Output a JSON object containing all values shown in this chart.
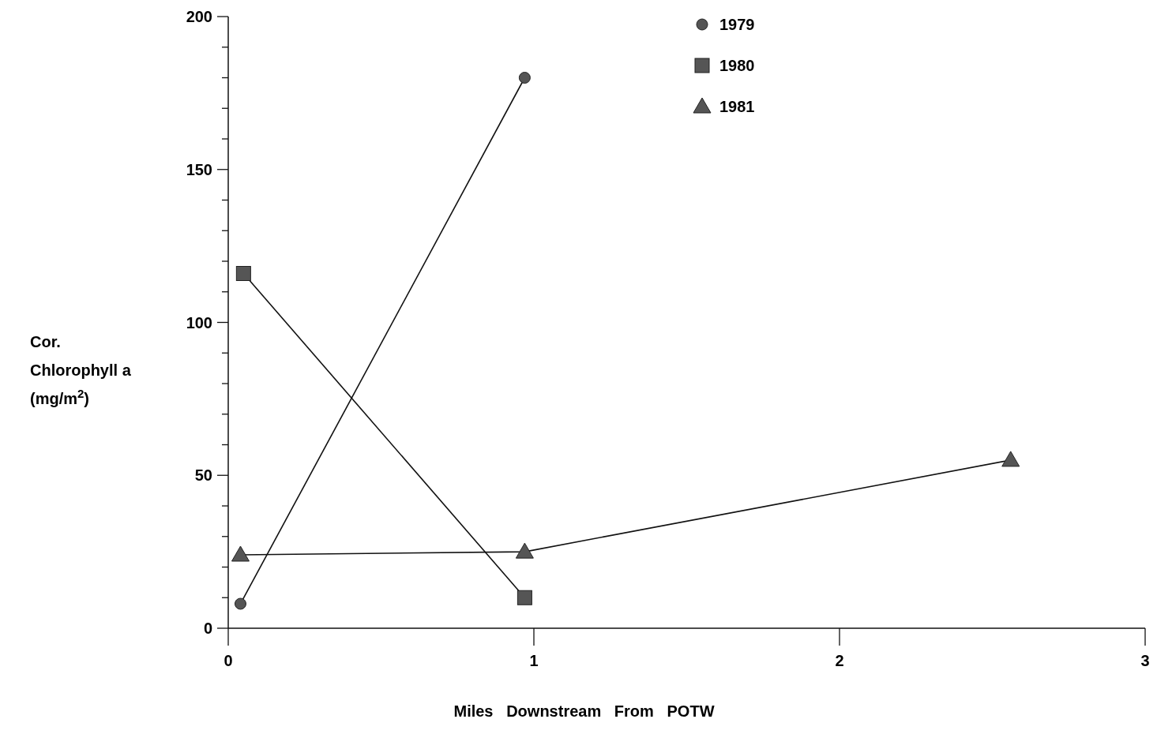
{
  "chart_data": {
    "type": "line",
    "xlabel": "Miles   Downstream   From   POTW",
    "ylabel": "Cor.\nChlorophyll a\n(mg/m$^{2}$)",
    "xlim": [
      0,
      3
    ],
    "xticks": [
      0,
      1,
      2,
      3
    ],
    "ylim": [
      0,
      200
    ],
    "yticks": [
      0,
      {
        "value": 10,
        "label": null
      },
      {
        "value": 20,
        "label": null
      },
      {
        "value": 30,
        "label": null
      },
      {
        "value": 40,
        "label": null
      },
      50,
      {
        "value": 60,
        "label": null
      },
      {
        "value": 70,
        "label": null
      },
      {
        "value": 80,
        "label": null
      },
      {
        "value": 90,
        "label": null
      },
      100,
      {
        "value": 110,
        "label": null
      },
      {
        "value": 120,
        "label": null
      },
      {
        "value": 130,
        "label": null
      },
      {
        "value": 140,
        "label": null
      },
      150,
      {
        "value": 160,
        "label": null
      },
      {
        "value": 170,
        "label": null
      },
      {
        "value": 180,
        "label": null
      },
      {
        "value": 190,
        "label": null
      },
      200
    ],
    "legend": "top right",
    "grid": false,
    "line_style": "solid",
    "series": [
      {
        "name": "1979",
        "color": "#555555",
        "marker": "circle",
        "x": [
          0.04,
          0.97
        ],
        "values": [
          8,
          180
        ]
      },
      {
        "name": "1980",
        "color": "#555555",
        "marker": "square",
        "x": [
          0.05,
          0.97
        ],
        "values": [
          116,
          10
        ]
      },
      {
        "name": "1981",
        "color": "#555555",
        "marker": "triangle",
        "x": [
          0.04,
          0.97,
          2.56
        ],
        "values": [
          24,
          25,
          55
        ]
      }
    ]
  }
}
